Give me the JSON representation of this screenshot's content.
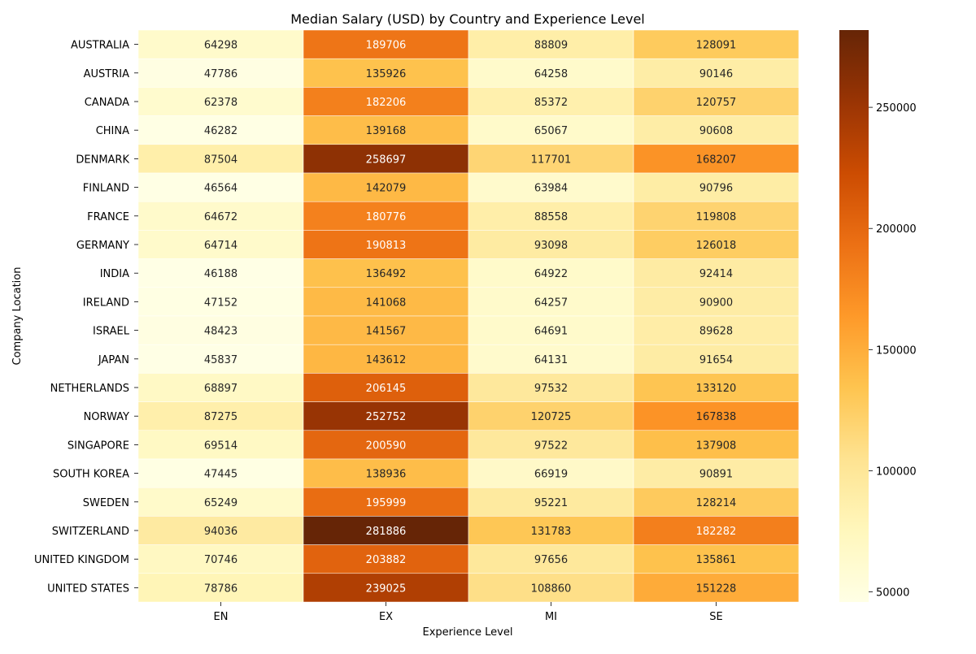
{
  "chart_data": {
    "type": "heatmap",
    "title": "Median Salary (USD) by Country and Experience Level",
    "xlabel": "Experience Level",
    "ylabel": "Company Location",
    "x_categories": [
      "EN",
      "EX",
      "MI",
      "SE"
    ],
    "y_categories": [
      "AUSTRALIA",
      "AUSTRIA",
      "CANADA",
      "CHINA",
      "DENMARK",
      "FINLAND",
      "FRANCE",
      "GERMANY",
      "INDIA",
      "IRELAND",
      "ISRAEL",
      "JAPAN",
      "NETHERLANDS",
      "NORWAY",
      "SINGAPORE",
      "SOUTH KOREA",
      "SWEDEN",
      "SWITZERLAND",
      "UNITED KINGDOM",
      "UNITED STATES"
    ],
    "values": [
      [
        64298,
        189706,
        88809,
        128091
      ],
      [
        47786,
        135926,
        64258,
        90146
      ],
      [
        62378,
        182206,
        85372,
        120757
      ],
      [
        46282,
        139168,
        65067,
        90608
      ],
      [
        87504,
        258697,
        117701,
        168207
      ],
      [
        46564,
        142079,
        63984,
        90796
      ],
      [
        64672,
        180776,
        88558,
        119808
      ],
      [
        64714,
        190813,
        93098,
        126018
      ],
      [
        46188,
        136492,
        64922,
        92414
      ],
      [
        47152,
        141068,
        64257,
        90900
      ],
      [
        48423,
        141567,
        64691,
        89628
      ],
      [
        45837,
        143612,
        64131,
        91654
      ],
      [
        68897,
        206145,
        97532,
        133120
      ],
      [
        87275,
        252752,
        120725,
        167838
      ],
      [
        69514,
        200590,
        97522,
        137908
      ],
      [
        47445,
        138936,
        66919,
        90891
      ],
      [
        65249,
        195999,
        95221,
        128214
      ],
      [
        94036,
        281886,
        131783,
        182282
      ],
      [
        70746,
        203882,
        97656,
        135861
      ],
      [
        78786,
        239025,
        108860,
        151228
      ]
    ],
    "colormap": "YlOrBr",
    "colorbar": {
      "min": 45837,
      "max": 281886,
      "ticks": [
        50000,
        100000,
        150000,
        200000,
        250000
      ],
      "tick_labels": [
        "50000",
        "100000",
        "150000",
        "200000",
        "250000"
      ]
    },
    "cell_annotations": true,
    "grid": false,
    "legend": "colorbar-right"
  }
}
